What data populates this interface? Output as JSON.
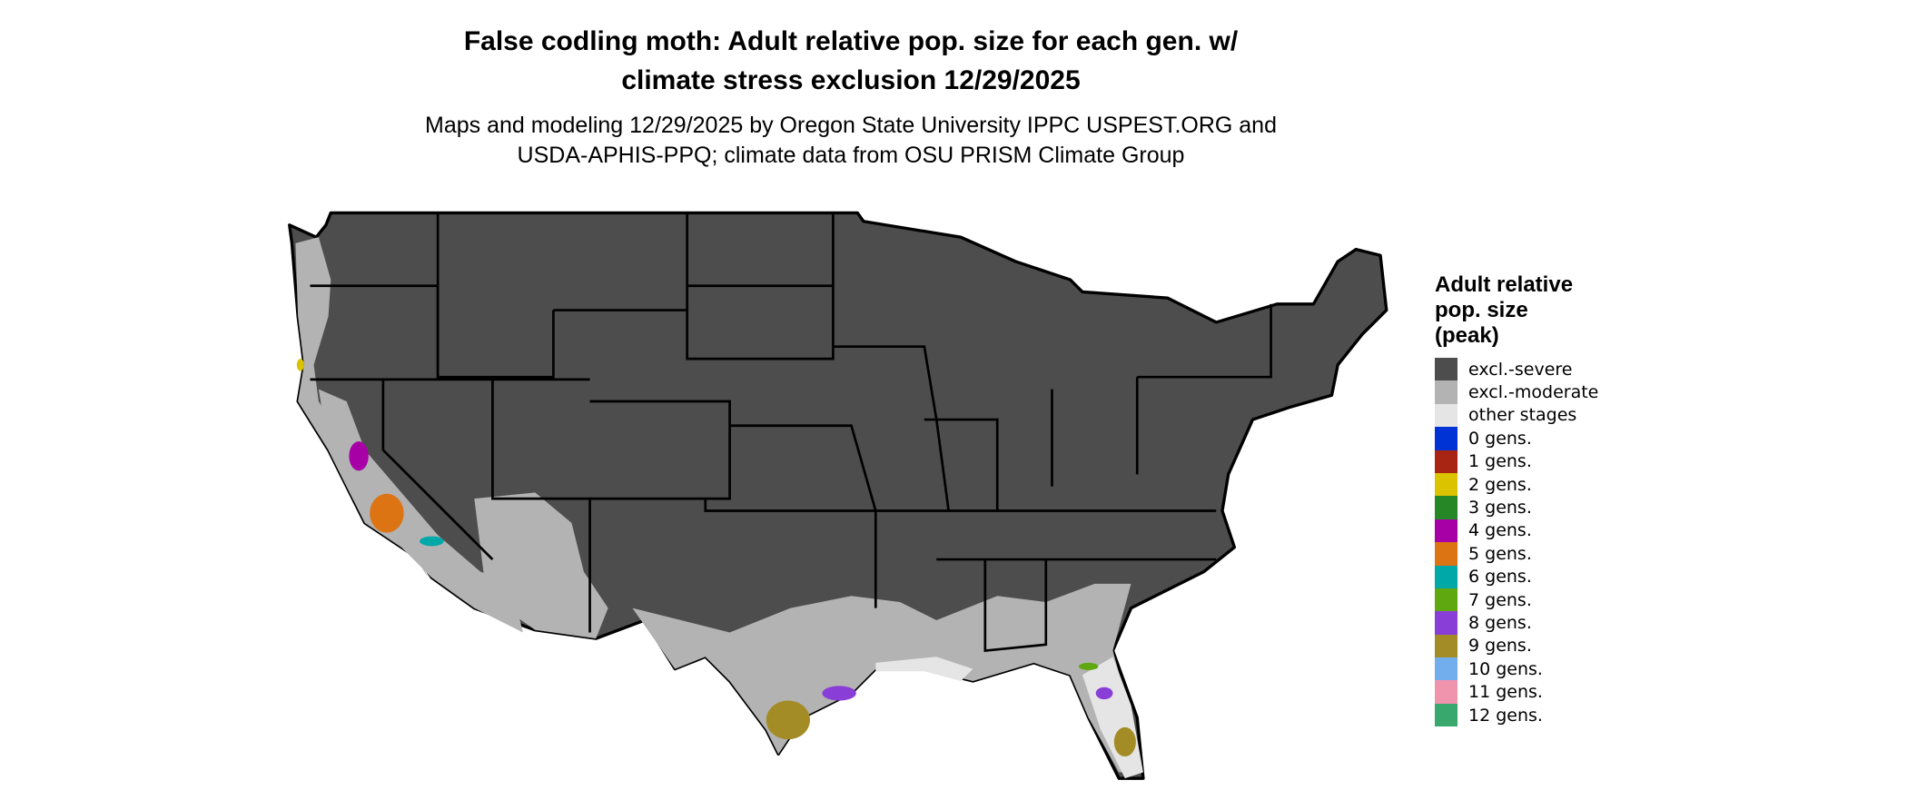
{
  "title": {
    "line1": "False codling moth: Adult relative pop. size for each gen. w/",
    "line2": "climate stress exclusion 12/29/2025"
  },
  "subtitle": {
    "line1": "Maps and modeling 12/29/2025 by Oregon State University IPPC USPEST.ORG and",
    "line2": "USDA-APHIS-PPQ; climate data from OSU PRISM Climate Group"
  },
  "legend": {
    "title_lines": [
      "Adult relative",
      "pop. size",
      "(peak)"
    ],
    "items": [
      {
        "label": "excl.-severe",
        "color": "#4d4d4d"
      },
      {
        "label": "excl.-moderate",
        "color": "#b3b3b3"
      },
      {
        "label": "other stages",
        "color": "#e5e5e5"
      },
      {
        "label": "0 gens.",
        "color": "#0033d6"
      },
      {
        "label": "1 gens.",
        "color": "#a82514"
      },
      {
        "label": "2 gens.",
        "color": "#dbc300"
      },
      {
        "label": "3 gens.",
        "color": "#268726"
      },
      {
        "label": "4 gens.",
        "color": "#a600a6"
      },
      {
        "label": "5 gens.",
        "color": "#dc7414"
      },
      {
        "label": "6 gens.",
        "color": "#00a8a8"
      },
      {
        "label": "7 gens.",
        "color": "#60a810"
      },
      {
        "label": "8 gens.",
        "color": "#8a3ed8"
      },
      {
        "label": "9 gens.",
        "color": "#a38c26"
      },
      {
        "label": "10 gens.",
        "color": "#72aeee"
      },
      {
        "label": "11 gens.",
        "color": "#f094ae"
      },
      {
        "label": "12 gens.",
        "color": "#38a86c"
      }
    ]
  }
}
